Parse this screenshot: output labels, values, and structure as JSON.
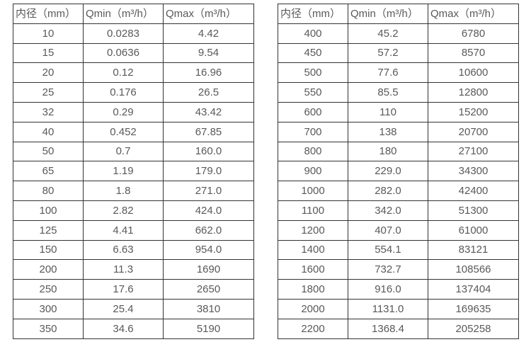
{
  "chart_data": [
    {
      "type": "table",
      "columns": [
        "内径（mm）",
        "Qmin（m³/h）",
        "Qmax（m³/h）"
      ],
      "rows": [
        [
          "10",
          "0.0283",
          "4.42"
        ],
        [
          "15",
          "0.0636",
          "9.54"
        ],
        [
          "20",
          "0.12",
          "16.96"
        ],
        [
          "25",
          "0.176",
          "26.5"
        ],
        [
          "32",
          "0.29",
          "43.42"
        ],
        [
          "40",
          "0.452",
          "67.85"
        ],
        [
          "50",
          "0.7",
          "160.0"
        ],
        [
          "65",
          "1.19",
          "179.0"
        ],
        [
          "80",
          "1.8",
          "271.0"
        ],
        [
          "100",
          "2.82",
          "424.0"
        ],
        [
          "125",
          "4.41",
          "662.0"
        ],
        [
          "150",
          "6.63",
          "954.0"
        ],
        [
          "200",
          "11.3",
          "1690"
        ],
        [
          "250",
          "17.6",
          "2650"
        ],
        [
          "300",
          "25.4",
          "3810"
        ],
        [
          "350",
          "34.6",
          "5190"
        ]
      ]
    },
    {
      "type": "table",
      "columns": [
        "内径（mm）",
        "Qmin（m³/h）",
        "Qmax（m³/h）"
      ],
      "rows": [
        [
          "400",
          "45.2",
          "6780"
        ],
        [
          "450",
          "57.2",
          "8570"
        ],
        [
          "500",
          "77.6",
          "10600"
        ],
        [
          "550",
          "85.5",
          "12800"
        ],
        [
          "600",
          "110",
          "15200"
        ],
        [
          "700",
          "138",
          "20700"
        ],
        [
          "800",
          "180",
          "27100"
        ],
        [
          "900",
          "229.0",
          "34300"
        ],
        [
          "1000",
          "282.0",
          "42400"
        ],
        [
          "1100",
          "342.0",
          "51300"
        ],
        [
          "1200",
          "407.0",
          "61000"
        ],
        [
          "1400",
          "554.1",
          "83121"
        ],
        [
          "1600",
          "732.7",
          "108566"
        ],
        [
          "1800",
          "916.0",
          "137404"
        ],
        [
          "2000",
          "1131.0",
          "169635"
        ],
        [
          "2200",
          "1368.4",
          "205258"
        ]
      ]
    }
  ],
  "colors": {
    "border": "#333333",
    "text": "#595959",
    "background": "#ffffff"
  }
}
